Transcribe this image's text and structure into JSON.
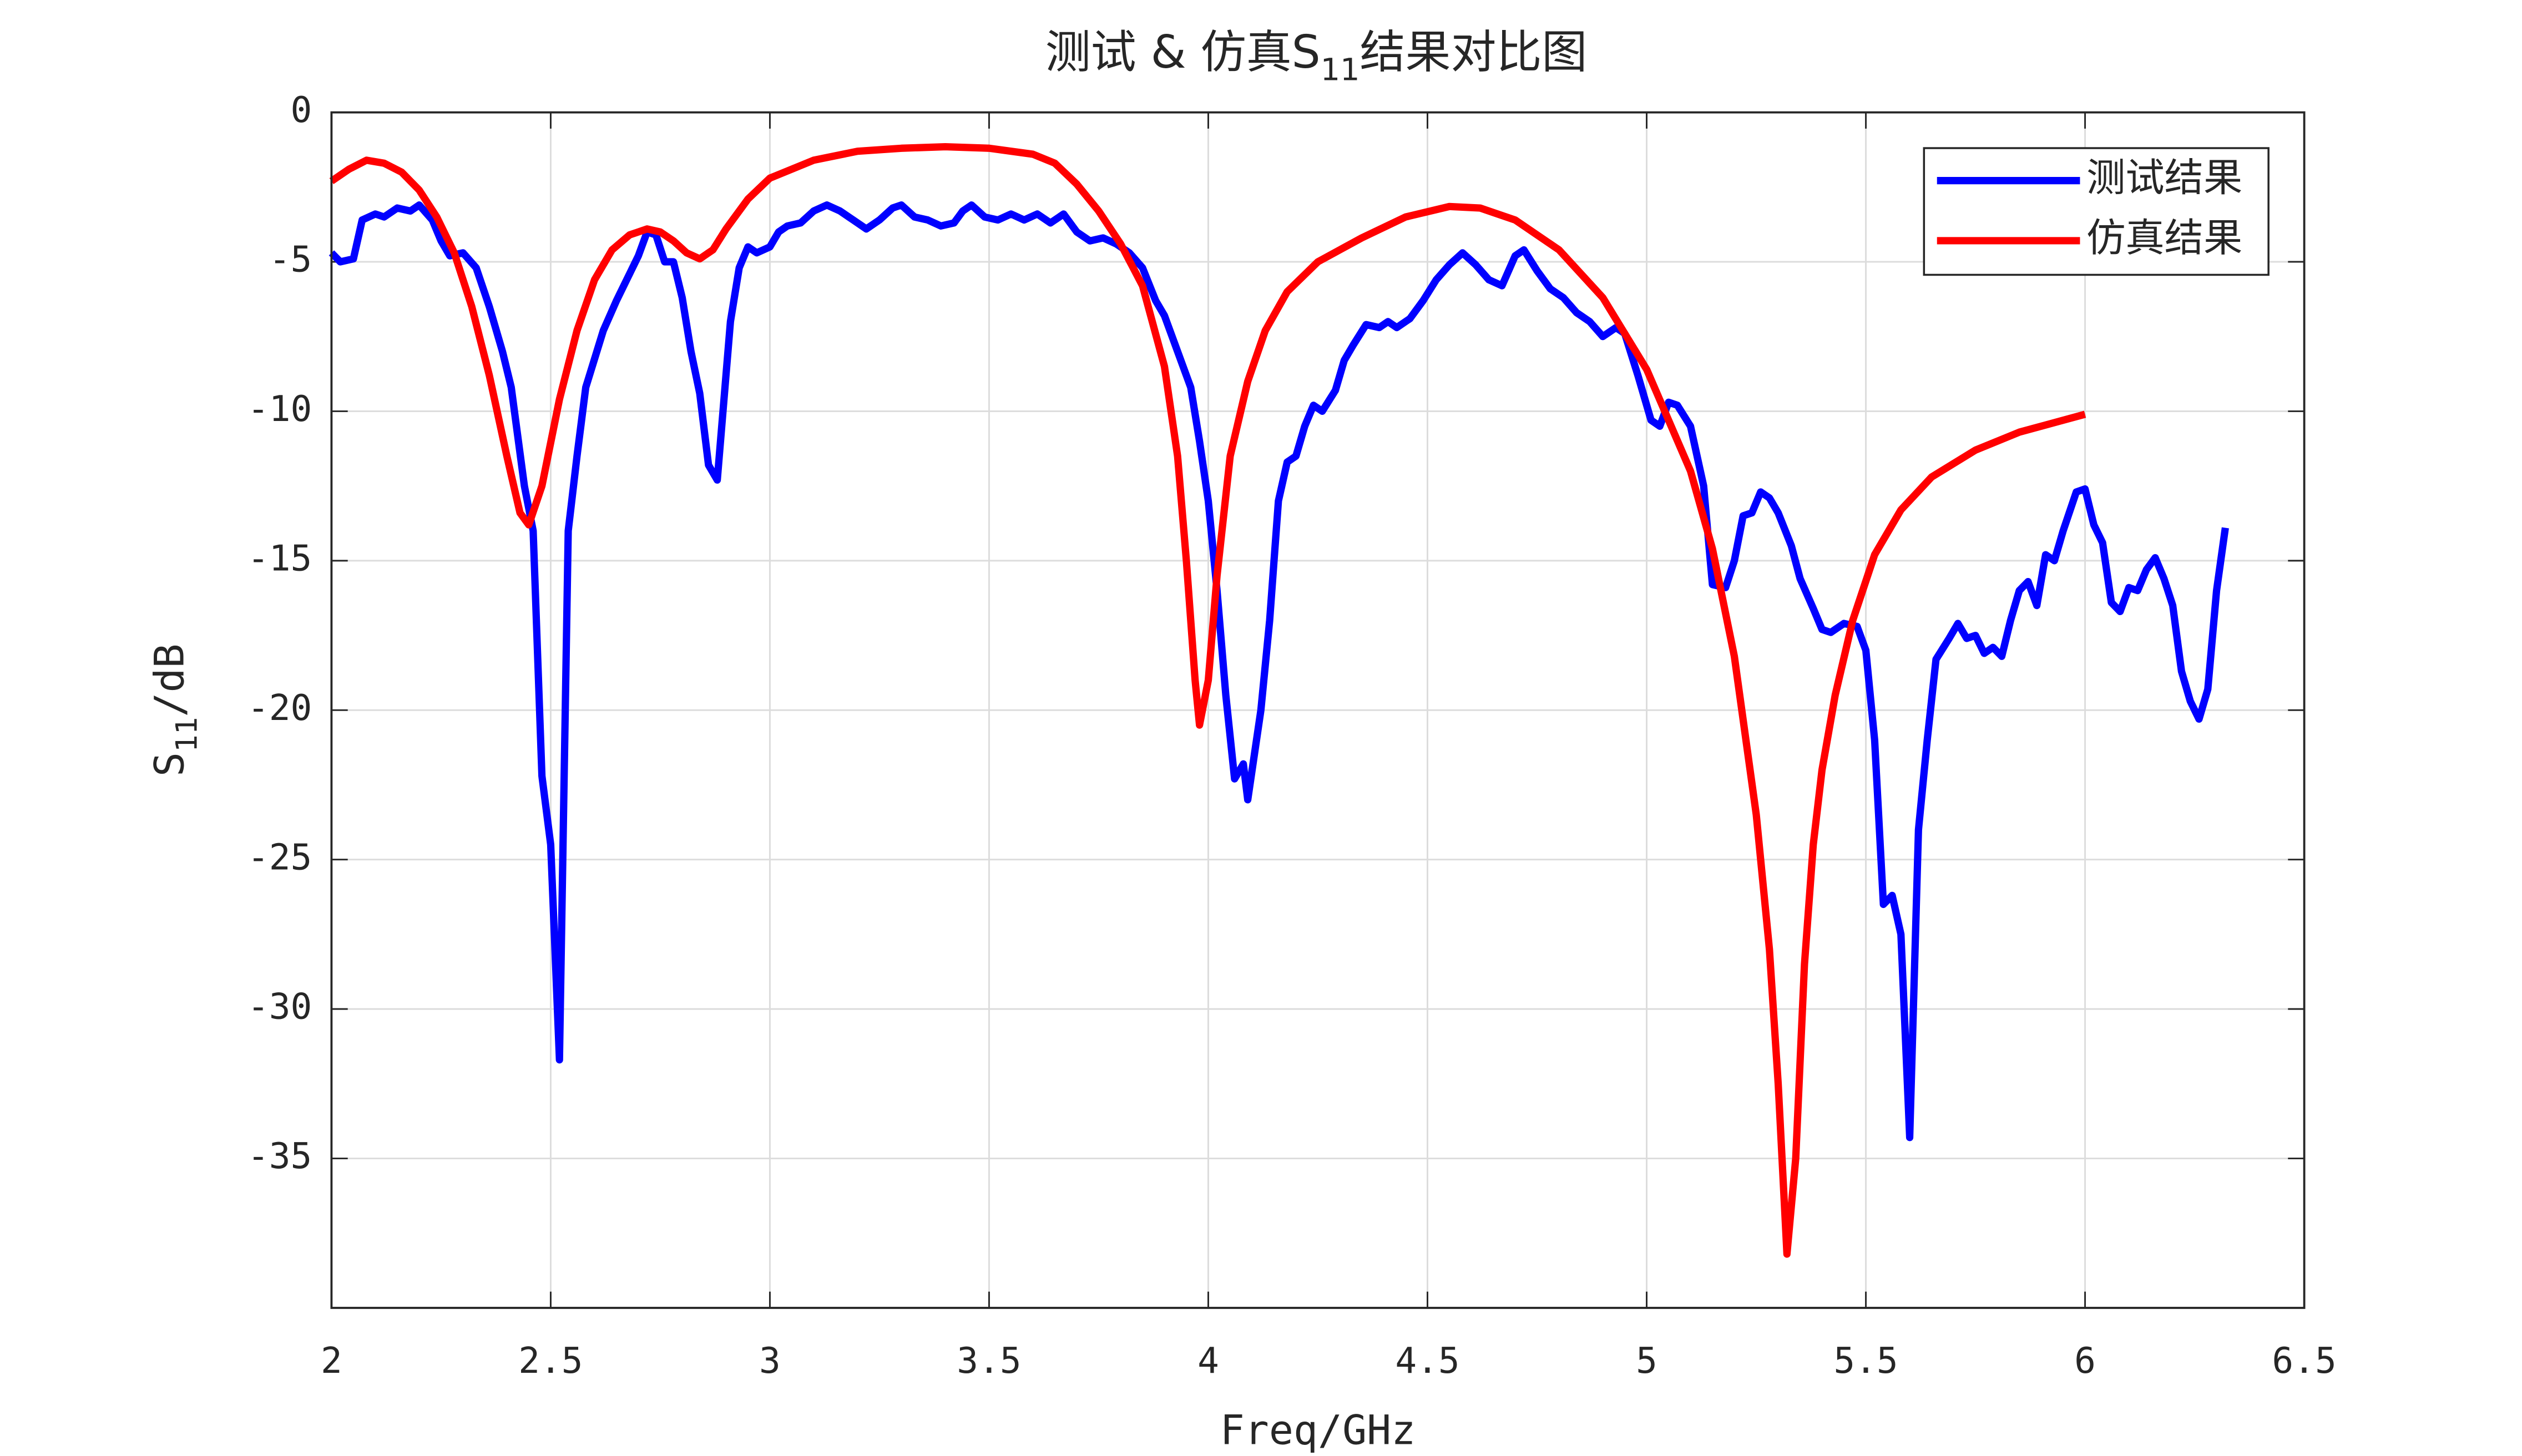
{
  "chart_data": {
    "type": "line",
    "title": {
      "prefix": "测试 & 仿真S",
      "sub": "11",
      "suffix": "结果对比图"
    },
    "x_label": "Freq/GHz",
    "y_label": {
      "prefix": "S",
      "sub": "11",
      "suffix": "/dB"
    },
    "xlim": [
      2,
      6.5
    ],
    "xticks": [
      2,
      2.5,
      3,
      3.5,
      4,
      4.5,
      5,
      5.5,
      6,
      6.5
    ],
    "ylim": [
      -40,
      0
    ],
    "yticks": [
      0,
      -5,
      -10,
      -15,
      -20,
      -25,
      -30,
      -35
    ],
    "grid": true,
    "legend": "northeast",
    "series": [
      {
        "name": "测试结果",
        "color": "#0000ff",
        "x": [
          2.0,
          2.02,
          2.05,
          2.07,
          2.1,
          2.12,
          2.15,
          2.18,
          2.2,
          2.23,
          2.25,
          2.27,
          2.3,
          2.33,
          2.36,
          2.39,
          2.41,
          2.44,
          2.46,
          2.48,
          2.5,
          2.52,
          2.54,
          2.56,
          2.58,
          2.62,
          2.65,
          2.68,
          2.7,
          2.72,
          2.74,
          2.76,
          2.78,
          2.8,
          2.82,
          2.84,
          2.86,
          2.88,
          2.91,
          2.93,
          2.95,
          2.97,
          3.0,
          3.02,
          3.04,
          3.07,
          3.1,
          3.13,
          3.16,
          3.19,
          3.22,
          3.25,
          3.28,
          3.3,
          3.33,
          3.36,
          3.39,
          3.42,
          3.44,
          3.46,
          3.49,
          3.52,
          3.55,
          3.58,
          3.61,
          3.64,
          3.67,
          3.7,
          3.73,
          3.76,
          3.79,
          3.82,
          3.85,
          3.88,
          3.9,
          3.93,
          3.96,
          3.98,
          4.0,
          4.02,
          4.04,
          4.06,
          4.08,
          4.09,
          4.12,
          4.14,
          4.16,
          4.18,
          4.2,
          4.22,
          4.24,
          4.26,
          4.29,
          4.31,
          4.33,
          4.36,
          4.39,
          4.41,
          4.43,
          4.46,
          4.49,
          4.52,
          4.55,
          4.58,
          4.61,
          4.64,
          4.67,
          4.7,
          4.72,
          4.75,
          4.78,
          4.81,
          4.84,
          4.87,
          4.9,
          4.93,
          4.95,
          4.98,
          5.01,
          5.03,
          5.05,
          5.07,
          5.1,
          5.13,
          5.15,
          5.18,
          5.2,
          5.22,
          5.24,
          5.26,
          5.28,
          5.3,
          5.33,
          5.35,
          5.38,
          5.4,
          5.42,
          5.45,
          5.48,
          5.5,
          5.52,
          5.54,
          5.56,
          5.58,
          5.6,
          5.62,
          5.64,
          5.66,
          5.69,
          5.71,
          5.73,
          5.75,
          5.77,
          5.79,
          5.81,
          5.83,
          5.85,
          5.87,
          5.89,
          5.91,
          5.93,
          5.95,
          5.98,
          6.0,
          6.02,
          6.04,
          6.06,
          6.08,
          6.1,
          6.12,
          6.14,
          6.16,
          6.18,
          6.2,
          6.22,
          6.24,
          6.26,
          6.28,
          6.3,
          6.32
        ],
        "values": [
          -4.7,
          -5.0,
          -4.9,
          -3.6,
          -3.4,
          -3.5,
          -3.2,
          -3.3,
          -3.1,
          -3.6,
          -4.3,
          -4.8,
          -4.7,
          -5.2,
          -6.5,
          -8.0,
          -9.2,
          -12.5,
          -14.0,
          -22.2,
          -24.5,
          -31.7,
          -14.0,
          -11.5,
          -9.2,
          -7.3,
          -6.3,
          -5.4,
          -4.8,
          -4.0,
          -4.1,
          -5.0,
          -5.0,
          -6.2,
          -8.0,
          -9.4,
          -11.8,
          -12.3,
          -7.0,
          -5.2,
          -4.5,
          -4.7,
          -4.5,
          -4.0,
          -3.8,
          -3.7,
          -3.3,
          -3.1,
          -3.3,
          -3.6,
          -3.9,
          -3.6,
          -3.2,
          -3.1,
          -3.5,
          -3.6,
          -3.8,
          -3.7,
          -3.3,
          -3.1,
          -3.5,
          -3.6,
          -3.4,
          -3.6,
          -3.4,
          -3.7,
          -3.4,
          -4.0,
          -4.3,
          -4.2,
          -4.4,
          -4.7,
          -5.2,
          -6.3,
          -6.8,
          -8.0,
          -9.2,
          -11.0,
          -13.0,
          -16.0,
          -19.5,
          -22.3,
          -21.8,
          -23.0,
          -20.0,
          -17.0,
          -13.0,
          -11.7,
          -11.5,
          -10.5,
          -9.8,
          -10.0,
          -9.3,
          -8.3,
          -7.8,
          -7.1,
          -7.2,
          -7.0,
          -7.2,
          -6.9,
          -6.3,
          -5.6,
          -5.1,
          -4.7,
          -5.1,
          -5.6,
          -5.8,
          -4.8,
          -4.6,
          -5.3,
          -5.9,
          -6.2,
          -6.7,
          -7.0,
          -7.5,
          -7.2,
          -7.4,
          -8.8,
          -10.3,
          -10.5,
          -9.7,
          -9.8,
          -10.5,
          -12.5,
          -15.8,
          -15.9,
          -15.0,
          -13.5,
          -13.4,
          -12.7,
          -12.9,
          -13.4,
          -14.5,
          -15.6,
          -16.6,
          -17.3,
          -17.4,
          -17.1,
          -17.2,
          -18.0,
          -21.0,
          -26.5,
          -26.2,
          -27.5,
          -34.3,
          -24.0,
          -21.0,
          -18.3,
          -17.6,
          -17.1,
          -17.6,
          -17.5,
          -18.1,
          -17.9,
          -18.2,
          -17.0,
          -16.0,
          -15.7,
          -16.5,
          -14.8,
          -15.0,
          -14.0,
          -12.7,
          -12.6,
          -13.8,
          -14.4,
          -16.4,
          -16.7,
          -15.9,
          -16.0,
          -15.3,
          -14.9,
          -15.6,
          -16.5,
          -18.7,
          -19.7,
          -20.3,
          -19.3,
          -16.0,
          -13.9
        ]
      },
      {
        "name": "仿真结果",
        "color": "#ff0000",
        "x": [
          2.0,
          2.04,
          2.08,
          2.12,
          2.16,
          2.2,
          2.24,
          2.28,
          2.32,
          2.36,
          2.4,
          2.43,
          2.45,
          2.48,
          2.52,
          2.56,
          2.6,
          2.64,
          2.68,
          2.72,
          2.75,
          2.78,
          2.81,
          2.84,
          2.87,
          2.9,
          2.95,
          3.0,
          3.1,
          3.2,
          3.3,
          3.4,
          3.5,
          3.6,
          3.65,
          3.7,
          3.75,
          3.8,
          3.85,
          3.9,
          3.93,
          3.95,
          3.97,
          3.98,
          4.0,
          4.02,
          4.05,
          4.09,
          4.13,
          4.18,
          4.25,
          4.35,
          4.45,
          4.55,
          4.62,
          4.7,
          4.8,
          4.9,
          5.0,
          5.1,
          5.15,
          5.2,
          5.25,
          5.28,
          5.3,
          5.32,
          5.34,
          5.36,
          5.38,
          5.4,
          5.43,
          5.47,
          5.52,
          5.58,
          5.65,
          5.75,
          5.85,
          6.0
        ],
        "values": [
          -2.3,
          -1.9,
          -1.6,
          -1.7,
          -2.0,
          -2.6,
          -3.5,
          -4.7,
          -6.5,
          -8.8,
          -11.5,
          -13.4,
          -13.8,
          -12.5,
          -9.6,
          -7.3,
          -5.6,
          -4.6,
          -4.1,
          -3.9,
          -4.0,
          -4.3,
          -4.7,
          -4.9,
          -4.6,
          -3.9,
          -2.9,
          -2.2,
          -1.6,
          -1.3,
          -1.2,
          -1.15,
          -1.2,
          -1.4,
          -1.7,
          -2.4,
          -3.3,
          -4.4,
          -5.8,
          -8.5,
          -11.5,
          -15.0,
          -19.0,
          -20.5,
          -19.0,
          -15.5,
          -11.5,
          -9.0,
          -7.3,
          -6.0,
          -5.0,
          -4.2,
          -3.5,
          -3.15,
          -3.2,
          -3.6,
          -4.6,
          -6.2,
          -8.6,
          -12.0,
          -14.6,
          -18.2,
          -23.5,
          -28.0,
          -32.5,
          -38.2,
          -35.0,
          -28.5,
          -24.5,
          -22.0,
          -19.5,
          -17.0,
          -14.8,
          -13.3,
          -12.2,
          -11.3,
          -10.7,
          -10.1
        ]
      }
    ]
  }
}
